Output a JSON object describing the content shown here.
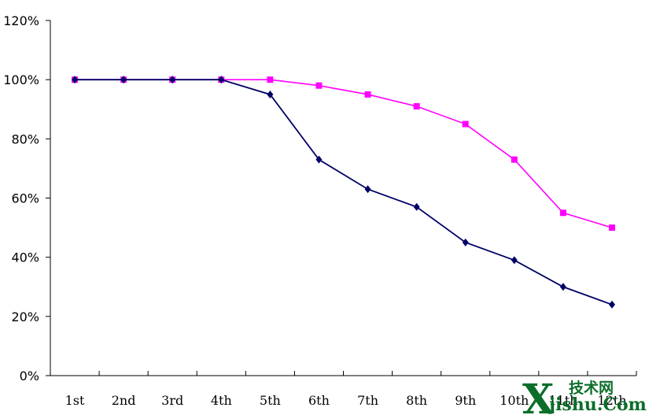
{
  "chart_data": {
    "type": "line",
    "title": "",
    "xlabel": "",
    "ylabel": "",
    "categories": [
      "1st",
      "2nd",
      "3rd",
      "4th",
      "5th",
      "6th",
      "7th",
      "8th",
      "9th",
      "10th",
      "11th",
      "12th"
    ],
    "y_ticks": [
      "0%",
      "20%",
      "40%",
      "60%",
      "80%",
      "100%",
      "120%"
    ],
    "ylim": [
      0,
      120
    ],
    "grid": false,
    "legend": "none",
    "series": [
      {
        "marker": "square",
        "color": "#ff00ff",
        "values": [
          100,
          100,
          100,
          100,
          100,
          98,
          95,
          91,
          85,
          73,
          55,
          50
        ]
      },
      {
        "marker": "diamond",
        "color": "#000066",
        "values": [
          100,
          100,
          100,
          100,
          95,
          73,
          63,
          57,
          45,
          39,
          30,
          24
        ]
      }
    ]
  },
  "watermark": {
    "logo": "X",
    "chinese": "技术网",
    "site": "jishu.Com"
  }
}
